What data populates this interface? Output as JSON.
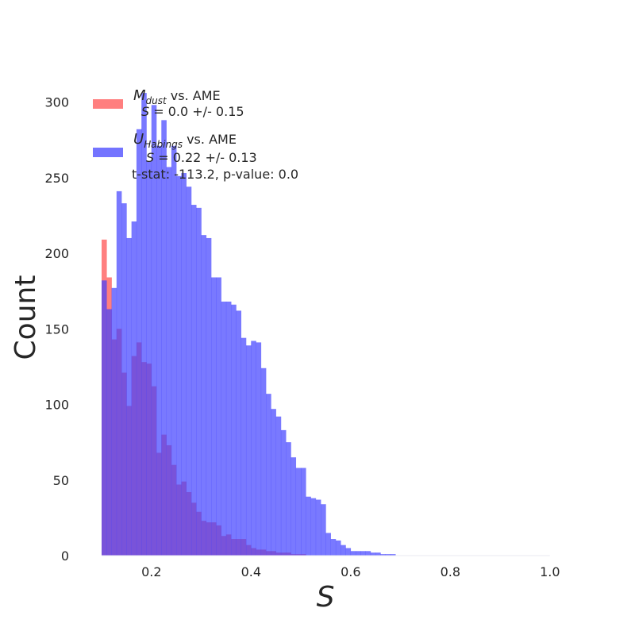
{
  "chart_data": {
    "type": "histogram",
    "xlabel": "S",
    "ylabel": "Count",
    "xlim": [
      0.1,
      1.0
    ],
    "ylim": [
      0,
      320
    ],
    "grid": false,
    "legend_position": "top-left",
    "x_ticks": [
      0.2,
      0.4,
      0.6,
      0.8,
      1.0
    ],
    "x_tick_labels": [
      "0.2",
      "0.4",
      "0.6",
      "0.8",
      "1.0"
    ],
    "y_ticks": [
      0,
      50,
      100,
      150,
      200,
      250,
      300
    ],
    "y_tick_labels": [
      "0",
      "50",
      "100",
      "150",
      "200",
      "250",
      "300"
    ],
    "bin_width": 0.01,
    "legend": [
      {
        "symbol": "M",
        "subscript": "dust",
        "suffix": " vs. AME",
        "stat_symbol": "S",
        "stat_text": " =  0.0 +/- 0.15"
      },
      {
        "symbol": "U",
        "subscript": "Habings",
        "suffix": " vs. AME",
        "stat_symbol": "S",
        "stat_text": " =  0.22 +/- 0.13"
      }
    ],
    "annotation": "t-stat: -113.2, p-value: 0.0",
    "series": [
      {
        "name": "M_dust vs. AME",
        "color": "#ff7f7f",
        "opacity": 1.0,
        "bin_start": [
          0.1,
          0.11,
          0.12,
          0.13,
          0.14,
          0.15,
          0.16,
          0.17,
          0.18,
          0.19,
          0.2,
          0.21,
          0.22,
          0.23,
          0.24,
          0.25,
          0.26,
          0.27,
          0.28,
          0.29,
          0.3,
          0.31,
          0.32,
          0.33,
          0.34,
          0.35,
          0.36,
          0.37,
          0.38,
          0.39,
          0.4,
          0.41,
          0.42,
          0.43,
          0.44,
          0.45,
          0.46,
          0.47,
          0.48,
          0.49,
          0.5
        ],
        "counts": [
          209,
          184,
          143,
          150,
          121,
          99,
          132,
          141,
          128,
          127,
          112,
          68,
          80,
          73,
          60,
          47,
          49,
          42,
          35,
          29,
          23,
          22,
          22,
          20,
          13,
          14,
          11,
          11,
          11,
          7,
          5,
          4,
          4,
          3,
          3,
          2,
          2,
          2,
          1,
          1,
          1
        ]
      },
      {
        "name": "U_Habings vs. AME",
        "color": "#4040ff",
        "opacity": 0.7,
        "bin_start": [
          0.1,
          0.11,
          0.12,
          0.13,
          0.14,
          0.15,
          0.16,
          0.17,
          0.18,
          0.19,
          0.2,
          0.21,
          0.22,
          0.23,
          0.24,
          0.25,
          0.26,
          0.27,
          0.28,
          0.29,
          0.3,
          0.31,
          0.32,
          0.33,
          0.34,
          0.35,
          0.36,
          0.37,
          0.38,
          0.39,
          0.4,
          0.41,
          0.42,
          0.43,
          0.44,
          0.45,
          0.46,
          0.47,
          0.48,
          0.49,
          0.5,
          0.51,
          0.52,
          0.53,
          0.54,
          0.55,
          0.56,
          0.57,
          0.58,
          0.59,
          0.6,
          0.61,
          0.62,
          0.63,
          0.64,
          0.65,
          0.66,
          0.67,
          0.68
        ],
        "counts": [
          182,
          163,
          177,
          241,
          233,
          210,
          221,
          282,
          306,
          261,
          298,
          271,
          288,
          257,
          271,
          251,
          253,
          244,
          232,
          230,
          212,
          210,
          184,
          184,
          168,
          168,
          166,
          162,
          144,
          139,
          142,
          141,
          124,
          107,
          97,
          92,
          83,
          75,
          65,
          58,
          58,
          39,
          38,
          37,
          34,
          15,
          11,
          10,
          7,
          5,
          3,
          3,
          3,
          3,
          2,
          2,
          1,
          1,
          1
        ]
      }
    ]
  }
}
